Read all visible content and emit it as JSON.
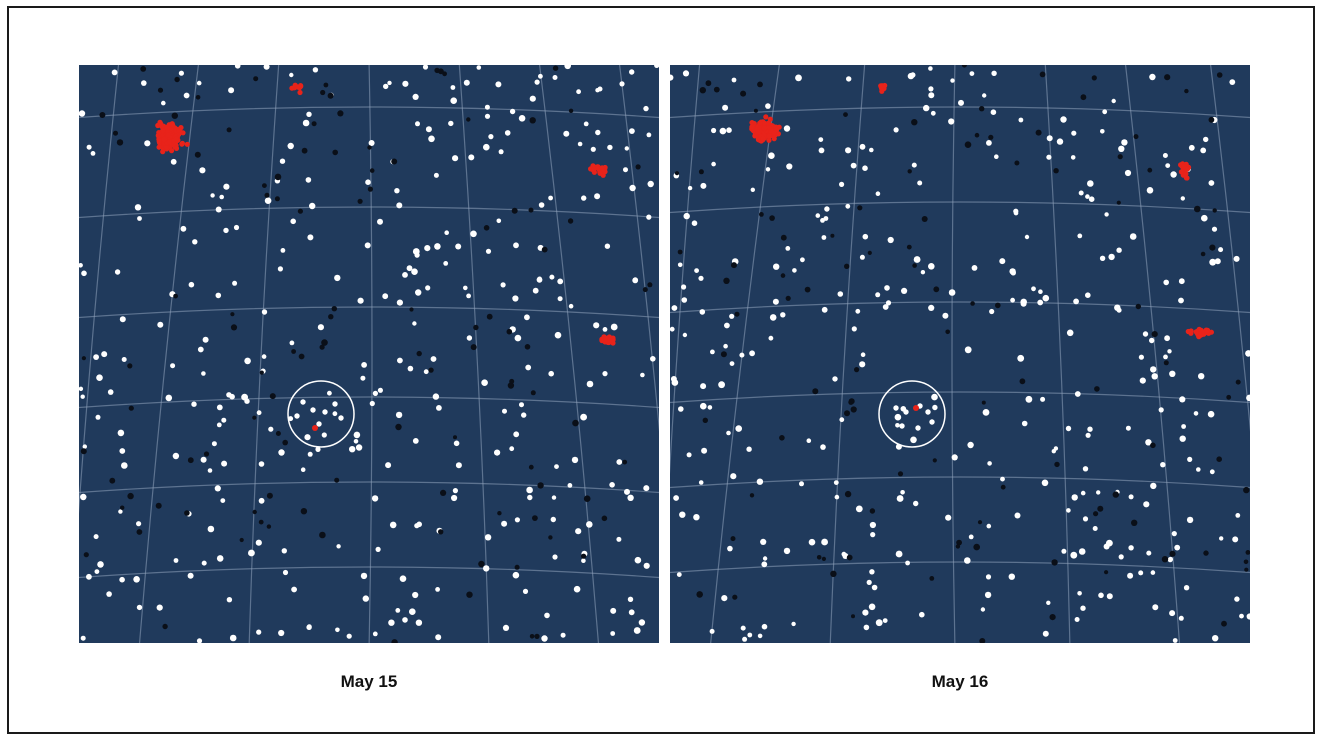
{
  "figure": {
    "panels": [
      {
        "caption": "May 15"
      },
      {
        "caption": "May 16"
      }
    ],
    "colors": {
      "sky": "#203a5c",
      "grid": "#8fa3bc",
      "star_white": "#ffffff",
      "star_black": "#0a0f18",
      "cluster_red": "#e8231a",
      "highlight_circle": "#ffffff"
    }
  }
}
